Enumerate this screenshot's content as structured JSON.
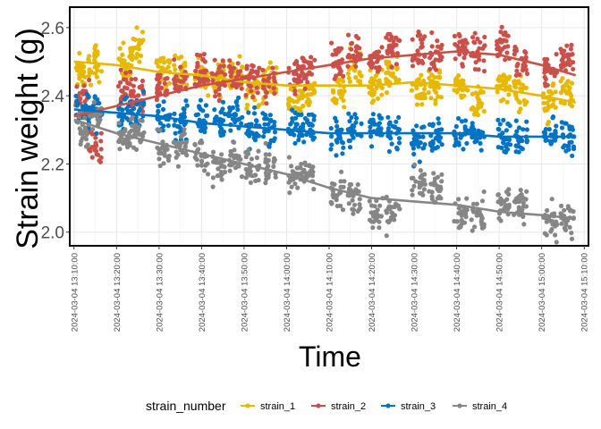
{
  "chart_data": {
    "type": "scatter",
    "title": "",
    "xlabel": "Time",
    "ylabel": "Strain weight (g)",
    "x_ticks": [
      "2024-03-04 13:10:00",
      "2024-03-04 13:20:00",
      "2024-03-04 13:30:00",
      "2024-03-04 13:40:00",
      "2024-03-04 13:50:00",
      "2024-03-04 14:00:00",
      "2024-03-04 14:10:00",
      "2024-03-04 14:20:00",
      "2024-03-04 14:30:00",
      "2024-03-04 14:40:00",
      "2024-03-04 14:50:00",
      "2024-03-04 15:00:00",
      "2024-03-04 15:10:00"
    ],
    "y_ticks": [
      "2.0",
      "2.2",
      "2.4",
      "2.6"
    ],
    "xlim": [
      "2024-03-04 13:09:00",
      "2024-03-04 15:11:00"
    ],
    "ylim": [
      1.96,
      2.66
    ],
    "grid": true,
    "legend": {
      "title": "strain_number",
      "position": "bottom"
    },
    "series": [
      {
        "name": "strain_1",
        "color": "#E7B800",
        "points": [
          [
            "13:12",
            2.47
          ],
          [
            "13:15",
            2.5
          ],
          [
            "13:22",
            2.5
          ],
          [
            "13:25",
            2.55
          ],
          [
            "13:31",
            2.48
          ],
          [
            "13:35",
            2.47
          ],
          [
            "13:40",
            2.46
          ],
          [
            "13:44",
            2.45
          ],
          [
            "13:48",
            2.46
          ],
          [
            "13:52",
            2.42
          ],
          [
            "13:56",
            2.44
          ],
          [
            "14:02",
            2.39
          ],
          [
            "14:05",
            2.41
          ],
          [
            "14:12",
            2.42
          ],
          [
            "14:16",
            2.48
          ],
          [
            "14:21",
            2.43
          ],
          [
            "14:25",
            2.47
          ],
          [
            "14:31",
            2.42
          ],
          [
            "14:35",
            2.43
          ],
          [
            "14:41",
            2.42
          ],
          [
            "14:45",
            2.38
          ],
          [
            "14:51",
            2.43
          ],
          [
            "14:55",
            2.41
          ],
          [
            "15:02",
            2.38
          ],
          [
            "15:06",
            2.41
          ]
        ],
        "trend": [
          [
            "13:10",
            2.5
          ],
          [
            "13:20",
            2.49
          ],
          [
            "13:30",
            2.47
          ],
          [
            "13:40",
            2.46
          ],
          [
            "13:50",
            2.44
          ],
          [
            "14:00",
            2.43
          ],
          [
            "14:10",
            2.43
          ],
          [
            "14:20",
            2.43
          ],
          [
            "14:30",
            2.44
          ],
          [
            "14:40",
            2.43
          ],
          [
            "14:50",
            2.42
          ],
          [
            "15:00",
            2.4
          ],
          [
            "15:08",
            2.38
          ]
        ]
      },
      {
        "name": "strain_2",
        "color": "#C9514A",
        "points": [
          [
            "13:12",
            2.38
          ],
          [
            "13:15",
            2.26
          ],
          [
            "13:22",
            2.42
          ],
          [
            "13:25",
            2.4
          ],
          [
            "13:31",
            2.42
          ],
          [
            "13:35",
            2.44
          ],
          [
            "13:40",
            2.47
          ],
          [
            "13:44",
            2.45
          ],
          [
            "13:48",
            2.45
          ],
          [
            "13:52",
            2.45
          ],
          [
            "13:56",
            2.44
          ],
          [
            "14:02",
            2.46
          ],
          [
            "14:05",
            2.48
          ],
          [
            "14:12",
            2.5
          ],
          [
            "14:16",
            2.53
          ],
          [
            "14:21",
            2.51
          ],
          [
            "14:25",
            2.54
          ],
          [
            "14:31",
            2.53
          ],
          [
            "14:35",
            2.52
          ],
          [
            "14:41",
            2.55
          ],
          [
            "14:45",
            2.53
          ],
          [
            "14:51",
            2.55
          ],
          [
            "14:55",
            2.5
          ],
          [
            "15:02",
            2.48
          ],
          [
            "15:06",
            2.51
          ]
        ],
        "trend": [
          [
            "13:10",
            2.34
          ],
          [
            "13:20",
            2.37
          ],
          [
            "13:30",
            2.4
          ],
          [
            "13:40",
            2.43
          ],
          [
            "13:50",
            2.45
          ],
          [
            "14:00",
            2.47
          ],
          [
            "14:10",
            2.49
          ],
          [
            "14:20",
            2.51
          ],
          [
            "14:30",
            2.52
          ],
          [
            "14:40",
            2.53
          ],
          [
            "14:50",
            2.52
          ],
          [
            "15:00",
            2.49
          ],
          [
            "15:08",
            2.46
          ]
        ]
      },
      {
        "name": "strain_3",
        "color": "#0073C2",
        "points": [
          [
            "13:12",
            2.36
          ],
          [
            "13:15",
            2.35
          ],
          [
            "13:22",
            2.35
          ],
          [
            "13:25",
            2.35
          ],
          [
            "13:31",
            2.34
          ],
          [
            "13:35",
            2.33
          ],
          [
            "13:40",
            2.33
          ],
          [
            "13:44",
            2.33
          ],
          [
            "13:48",
            2.35
          ],
          [
            "13:52",
            2.3
          ],
          [
            "13:56",
            2.3
          ],
          [
            "14:02",
            2.3
          ],
          [
            "14:05",
            2.3
          ],
          [
            "14:12",
            2.28
          ],
          [
            "14:16",
            2.3
          ],
          [
            "14:21",
            2.3
          ],
          [
            "14:25",
            2.29
          ],
          [
            "14:31",
            2.26
          ],
          [
            "14:35",
            2.28
          ],
          [
            "14:41",
            2.29
          ],
          [
            "14:45",
            2.29
          ],
          [
            "14:51",
            2.28
          ],
          [
            "14:55",
            2.28
          ],
          [
            "15:02",
            2.28
          ],
          [
            "15:06",
            2.28
          ]
        ],
        "trend": [
          [
            "13:10",
            2.36
          ],
          [
            "13:20",
            2.35
          ],
          [
            "13:30",
            2.34
          ],
          [
            "13:40",
            2.32
          ],
          [
            "13:50",
            2.31
          ],
          [
            "14:00",
            2.3
          ],
          [
            "14:10",
            2.29
          ],
          [
            "14:20",
            2.29
          ],
          [
            "14:30",
            2.29
          ],
          [
            "14:40",
            2.29
          ],
          [
            "14:50",
            2.28
          ],
          [
            "15:00",
            2.28
          ],
          [
            "15:08",
            2.28
          ]
        ]
      },
      {
        "name": "strain_4",
        "color": "#868686",
        "points": [
          [
            "13:12",
            2.3
          ],
          [
            "13:15",
            2.34
          ],
          [
            "13:22",
            2.27
          ],
          [
            "13:25",
            2.29
          ],
          [
            "13:31",
            2.24
          ],
          [
            "13:35",
            2.26
          ],
          [
            "13:40",
            2.22
          ],
          [
            "13:44",
            2.2
          ],
          [
            "13:48",
            2.22
          ],
          [
            "13:52",
            2.19
          ],
          [
            "13:56",
            2.2
          ],
          [
            "14:02",
            2.16
          ],
          [
            "14:05",
            2.17
          ],
          [
            "14:12",
            2.12
          ],
          [
            "14:16",
            2.11
          ],
          [
            "14:21",
            2.05
          ],
          [
            "14:25",
            2.06
          ],
          [
            "14:31",
            2.15
          ],
          [
            "14:35",
            2.14
          ],
          [
            "14:41",
            2.05
          ],
          [
            "14:45",
            2.05
          ],
          [
            "14:51",
            2.08
          ],
          [
            "14:55",
            2.09
          ],
          [
            "15:02",
            2.03
          ],
          [
            "15:06",
            2.03
          ]
        ],
        "trend": [
          [
            "13:10",
            2.33
          ],
          [
            "13:20",
            2.29
          ],
          [
            "13:30",
            2.26
          ],
          [
            "13:40",
            2.23
          ],
          [
            "13:50",
            2.2
          ],
          [
            "14:00",
            2.17
          ],
          [
            "14:10",
            2.13
          ],
          [
            "14:20",
            2.1
          ],
          [
            "14:30",
            2.09
          ],
          [
            "14:40",
            2.08
          ],
          [
            "14:50",
            2.06
          ],
          [
            "15:00",
            2.05
          ],
          [
            "15:08",
            2.04
          ]
        ]
      }
    ]
  }
}
